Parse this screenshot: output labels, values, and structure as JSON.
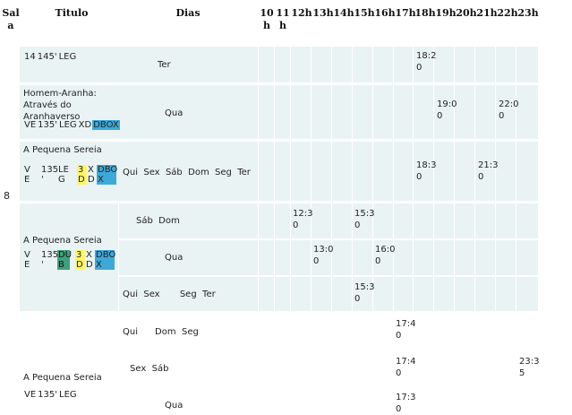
{
  "headers": {
    "sala": "Sal\na",
    "titulo": "Titulo",
    "dias": "Dias",
    "h10": "10\nh",
    "h11": "11\nh",
    "h12": "12h",
    "h13": "13h",
    "h14": "14h",
    "h15": "15h",
    "h16": "16h",
    "h17": "17h",
    "h18": "18h",
    "h19": "19h",
    "h20": "20h",
    "h21": "21h",
    "h22": "22h",
    "h23": "23h"
  },
  "sala_number": "8",
  "films": [
    {
      "title": "",
      "tags": [
        "14",
        "145'",
        "LEG"
      ],
      "days": "Ter",
      "times": [
        "18:2\n0"
      ]
    },
    {
      "title": "Homem-Aranha: Através do Aranhaverso",
      "tags": [
        "VE",
        "135'",
        "LEG",
        "XD",
        "DBOX"
      ],
      "days": "Qua",
      "times": [
        "19:0\n0",
        "22:0\n0"
      ]
    },
    {
      "title": "A Pequena Sereia",
      "tags": [
        "V\nE",
        "135\n'",
        "LE\nG",
        "3\nD",
        "X\nD",
        "DBO\nX"
      ],
      "days": "Qui  Sex  Sáb  Dom  Seg  Ter",
      "times": [
        "18:3\n0",
        "21:3\n0"
      ]
    },
    {
      "title": "A Pequena Sereia",
      "tags": [
        "V\nE",
        "135\n'",
        "DU\nB",
        "3\nD",
        "X\nD",
        "DBO\nX"
      ],
      "sessions": [
        {
          "days": "Sáb  Dom",
          "times": [
            "12:3\n0",
            "15:3\n0"
          ]
        },
        {
          "days": "Qua",
          "times": [
            "13:0\n0",
            "16:0\n0"
          ]
        },
        {
          "days": "Qui  Sex       Seg  Ter",
          "times": [
            "15:3\n0"
          ]
        }
      ]
    },
    {
      "title": "A Pequena Sereia",
      "tags": [
        "VE",
        "135'",
        "LEG"
      ],
      "sessions": [
        {
          "days": "Qui      Dom  Seg",
          "times": [
            "17:4\n0"
          ]
        },
        {
          "days": "Sex  Sáb",
          "times": [
            "17:4\n0",
            "23:3\n5"
          ]
        },
        {
          "days": "Qua",
          "times": [
            "17:3\n0"
          ]
        }
      ]
    }
  ]
}
